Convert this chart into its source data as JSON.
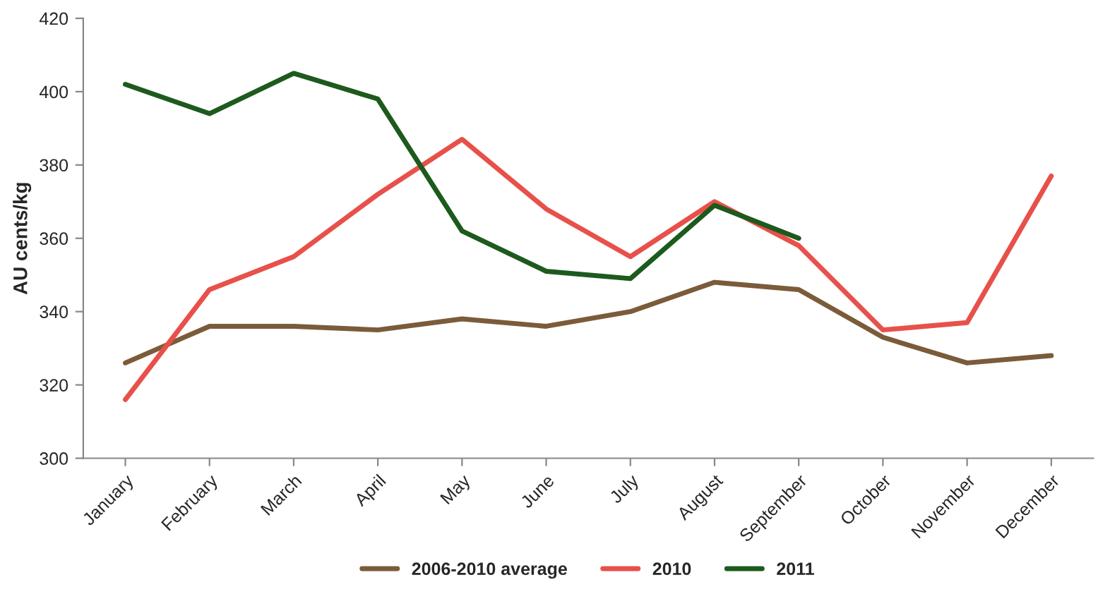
{
  "chart_data": {
    "type": "line",
    "ylabel": "AU cents/kg",
    "categories": [
      "January",
      "February",
      "March",
      "April",
      "May",
      "June",
      "July",
      "August",
      "September",
      "October",
      "November",
      "December"
    ],
    "series": [
      {
        "name": "2006-2010 average",
        "color": "#7b5b3a",
        "values": [
          326,
          336,
          336,
          335,
          338,
          336,
          340,
          348,
          346,
          333,
          326,
          328
        ]
      },
      {
        "name": "2010",
        "color": "#e8504a",
        "values": [
          316,
          346,
          355,
          372,
          387,
          368,
          355,
          370,
          358,
          335,
          337,
          377
        ]
      },
      {
        "name": "2011",
        "color": "#1d5a1d",
        "values": [
          402,
          394,
          405,
          398,
          362,
          351,
          349,
          369,
          360,
          null,
          null,
          null
        ]
      }
    ],
    "ylim": [
      300,
      420
    ],
    "yticks": [
      300,
      320,
      340,
      360,
      380,
      400,
      420
    ],
    "grid": false,
    "legend": "bottom",
    "marker": "none",
    "line_style": "solid"
  }
}
